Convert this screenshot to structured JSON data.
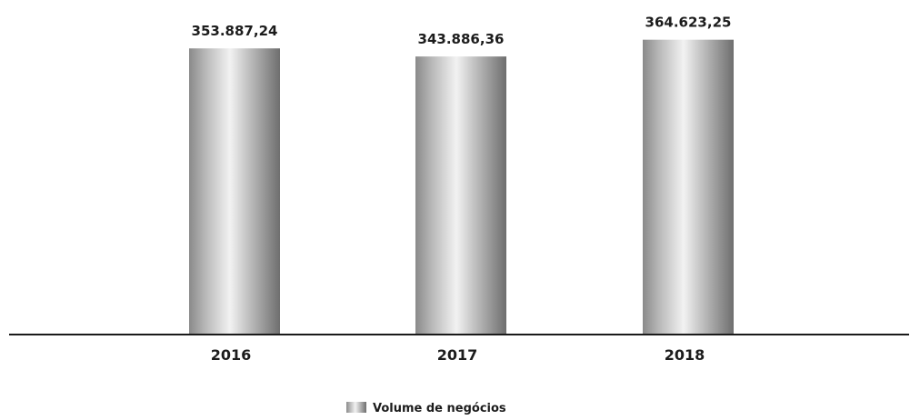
{
  "chart_data": {
    "type": "bar",
    "categories": [
      "2016",
      "2017",
      "2018"
    ],
    "series": [
      {
        "name": "Volume de negócios",
        "values": [
          353887.24,
          343886.36,
          364623.25
        ],
        "labels": [
          "353.887,24",
          "343.886,36",
          "364.623,25"
        ]
      }
    ],
    "title": "",
    "xlabel": "",
    "ylabel": "",
    "ylim": [
      0,
      380000
    ],
    "grid": false,
    "legend": "bottom-center",
    "bar_colors": [
      "#8a8a8a",
      "#f2f2f2",
      "#6e6e6e"
    ]
  }
}
